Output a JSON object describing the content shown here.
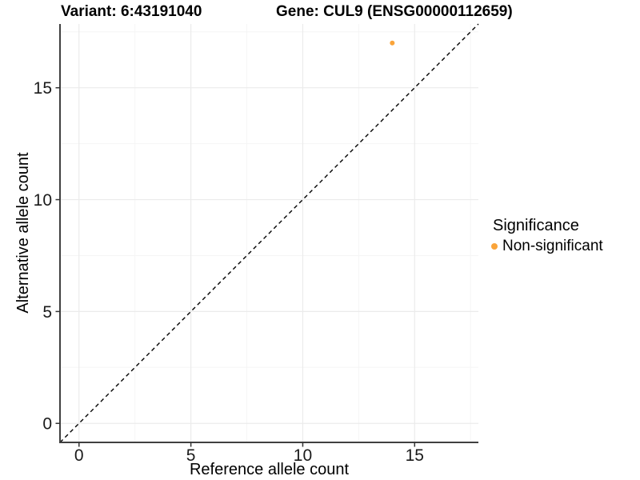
{
  "titles": {
    "variant": "Variant: 6:43191040",
    "gene": "Gene: CUL9 (ENSG00000112659)"
  },
  "legend": {
    "title": "Significance",
    "items": [
      {
        "label": "Non-significant",
        "color": "#FAA43A"
      }
    ]
  },
  "colors": {
    "point": "#FAA43A",
    "axis_line": "#404040",
    "tick_mark": "#333333",
    "tick_label": "#1a1a1a",
    "grid_major": "#EBEBEB",
    "grid_minor": "#F5F5F5",
    "identity_line": "#000000",
    "background": "#FFFFFF"
  },
  "chart_data": {
    "type": "scatter",
    "title_left": "Variant: 6:43191040",
    "title_right": "Gene: CUL9 (ENSG00000112659)",
    "xlabel": "Reference allele count",
    "ylabel": "Alternative allele count",
    "xlim": [
      -0.85,
      17.85
    ],
    "ylim": [
      -0.85,
      17.85
    ],
    "x_ticks": [
      0,
      5,
      10,
      15
    ],
    "y_ticks": [
      0,
      5,
      10,
      15
    ],
    "x_minor_ticks": [
      2.5,
      7.5,
      12.5,
      17.5
    ],
    "y_minor_ticks": [
      2.5,
      7.5,
      12.5,
      17.5
    ],
    "grid": true,
    "legend_position": "right",
    "legend_title": "Significance",
    "series": [
      {
        "name": "Non-significant",
        "color": "#FAA43A",
        "points": [
          {
            "x": 14,
            "y": 17
          }
        ]
      }
    ],
    "reference_line": {
      "type": "identity",
      "equation": "y = x",
      "style": "dashed",
      "color": "#000000"
    }
  }
}
